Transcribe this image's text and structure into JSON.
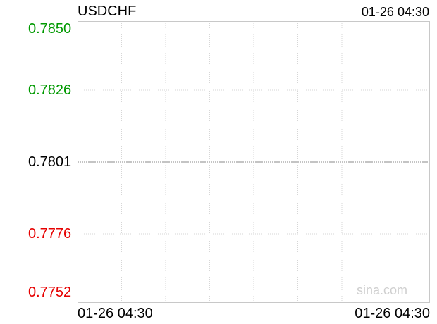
{
  "header": {
    "symbol": "USDCHF",
    "timestamp": "01-26 04:30"
  },
  "watermark": "sina.com",
  "colors": {
    "up": "#009900",
    "down": "#e60000",
    "neutral": "#000000",
    "grid": "#d6d6d6",
    "border": "#c8c8c8",
    "baseline": "#888888"
  },
  "chart_data": {
    "type": "line",
    "title": "USDCHF",
    "xlabel": "",
    "ylabel": "",
    "ylim": [
      0.7752,
      0.785
    ],
    "reference": 0.7801,
    "y_ticks": [
      {
        "label": "0.7850",
        "value": 0.785,
        "color": "up"
      },
      {
        "label": "0.7826",
        "value": 0.7826,
        "color": "up"
      },
      {
        "label": "0.7801",
        "value": 0.7801,
        "color": "neutral"
      },
      {
        "label": "0.7776",
        "value": 0.7776,
        "color": "down"
      },
      {
        "label": "0.7752",
        "value": 0.7752,
        "color": "down"
      }
    ],
    "x_ticks": [
      "01-26 04:30",
      "01-26 04:30"
    ],
    "series": [],
    "grid": true
  }
}
